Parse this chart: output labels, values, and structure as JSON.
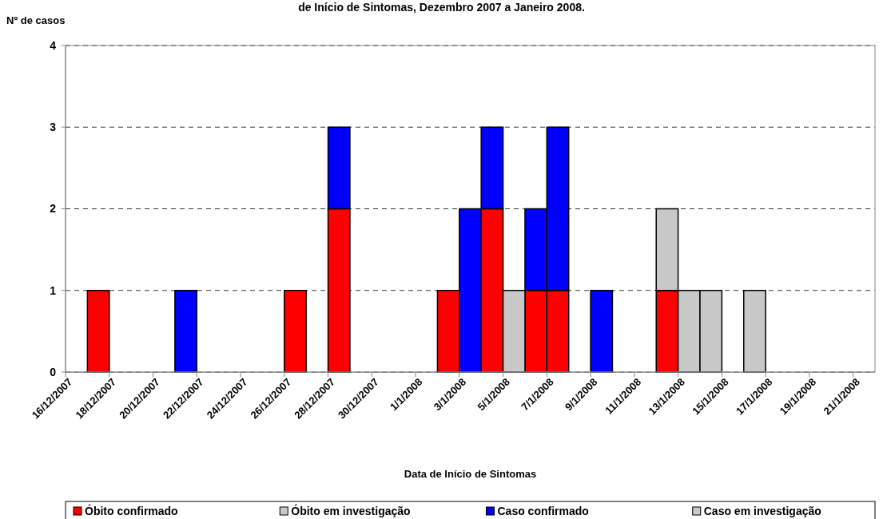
{
  "chart_data": {
    "type": "bar",
    "stacked": true,
    "title": "de Início de Sintomas, Dezembro 2007 a Janeiro 2008.",
    "xlabel": "Data de Início de Sintomas",
    "ylabel": "Nº de casos",
    "categories": [
      "16/12/2007",
      null,
      "18/12/2007",
      null,
      "20/12/2007",
      null,
      "22/12/2007",
      null,
      "24/12/2007",
      null,
      "26/12/2007",
      null,
      "28/12/2007",
      null,
      "30/12/2007",
      null,
      "1/1/2008",
      null,
      "3/1/2008",
      null,
      "5/1/2008",
      null,
      "7/1/2008",
      null,
      "9/1/2008",
      null,
      "11/1/2008",
      null,
      "13/1/2008",
      null,
      "15/1/2008",
      null,
      "17/1/2008",
      null,
      "19/1/2008",
      null,
      "21/1/2008"
    ],
    "series": [
      {
        "name": "Óbito confirmado",
        "color": "#ff0000",
        "values": [
          null,
          1,
          null,
          null,
          null,
          null,
          null,
          null,
          null,
          null,
          1,
          null,
          2,
          null,
          null,
          null,
          null,
          1,
          null,
          2,
          null,
          1,
          1,
          null,
          null,
          null,
          null,
          1,
          null,
          null,
          null,
          null,
          null,
          null,
          null,
          null,
          null
        ]
      },
      {
        "name": "Óbito em investigação",
        "color": "#c8c8c8",
        "values": [
          null,
          null,
          null,
          null,
          null,
          null,
          null,
          null,
          null,
          null,
          null,
          null,
          null,
          null,
          null,
          null,
          null,
          null,
          null,
          null,
          1,
          null,
          null,
          null,
          null,
          null,
          null,
          1,
          1,
          1,
          null,
          1,
          null,
          null,
          null,
          null,
          null
        ]
      },
      {
        "name": "Caso confirmado",
        "color": "#0000ff",
        "values": [
          null,
          null,
          null,
          null,
          null,
          1,
          null,
          null,
          null,
          null,
          null,
          null,
          1,
          null,
          null,
          null,
          null,
          null,
          2,
          1,
          null,
          1,
          2,
          null,
          1,
          null,
          null,
          null,
          null,
          null,
          null,
          null,
          null,
          null,
          null,
          null,
          null
        ]
      },
      {
        "name": "Caso em investigação",
        "color": "#c8c8c8",
        "values": [
          null,
          null,
          null,
          null,
          null,
          null,
          null,
          null,
          null,
          null,
          null,
          null,
          null,
          null,
          null,
          null,
          null,
          null,
          null,
          null,
          null,
          null,
          null,
          null,
          null,
          null,
          null,
          null,
          null,
          null,
          null,
          null,
          null,
          null,
          null,
          null,
          null
        ]
      }
    ],
    "ylim": [
      0,
      4
    ],
    "yticks": [
      0,
      1,
      2,
      3,
      4
    ],
    "grid": "y",
    "legend": "bottom"
  }
}
